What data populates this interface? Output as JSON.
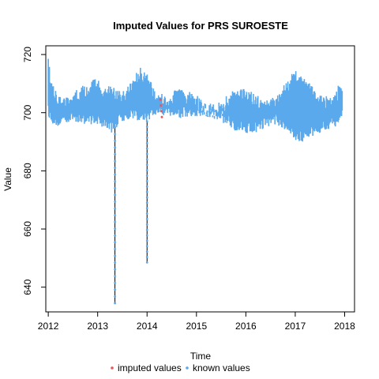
{
  "chart_data": {
    "type": "line",
    "title": "Imputed Values for  PRS SUROESTE",
    "xlabel": "Time",
    "ylabel": "Value",
    "xlim": [
      2011.95,
      2018.2
    ],
    "ylim": [
      631.5,
      723
    ],
    "x_ticks": [
      "2012",
      "2013",
      "2014",
      "2015",
      "2016",
      "2017",
      "2018"
    ],
    "y_ticks": [
      "640",
      "660",
      "680",
      "700",
      "720"
    ],
    "legend": {
      "placement": "bottom",
      "entries": [
        {
          "label": "imputed values",
          "color": "#e8575a"
        },
        {
          "label": "known values",
          "color": "#5aa9ec"
        }
      ]
    },
    "series": [
      {
        "name": "known values",
        "color": "#5aa9ec",
        "band": {
          "x": [
            2012.0,
            2012.05,
            2012.15,
            2012.3,
            2012.5,
            2012.75,
            2012.95,
            2013.1,
            2013.3,
            2013.5,
            2013.7,
            2013.85,
            2014.0,
            2014.2,
            2014.4,
            2014.6,
            2014.8,
            2015.0,
            2015.25,
            2015.5,
            2015.75,
            2016.0,
            2016.2,
            2016.4,
            2016.6,
            2016.8,
            2017.0,
            2017.2,
            2017.4,
            2017.6,
            2017.8,
            2017.95
          ],
          "upper": [
            719,
            712,
            709,
            705,
            707,
            710,
            712,
            710,
            709,
            707,
            711,
            716,
            714,
            706,
            707,
            708,
            708,
            706,
            703,
            704,
            708,
            709,
            706,
            705,
            706,
            710,
            715,
            712,
            708,
            706,
            708,
            711
          ],
          "lower": [
            699,
            697,
            695,
            696,
            697,
            696,
            696,
            695,
            693,
            697,
            698,
            697,
            697,
            699,
            699,
            698,
            698,
            698,
            698,
            697,
            694,
            693,
            693,
            695,
            696,
            694,
            690,
            690,
            692,
            694,
            695,
            697
          ]
        },
        "spikes": [
          {
            "x": 2013.35,
            "min": 634.5,
            "max": 695
          },
          {
            "x": 2014.0,
            "min": 648.5,
            "max": 697
          }
        ]
      },
      {
        "name": "imputed values",
        "color": "#e8575a",
        "points": [
          {
            "x": 2014.27,
            "y": 704.5
          },
          {
            "x": 2014.28,
            "y": 702.5
          },
          {
            "x": 2014.29,
            "y": 700.5
          },
          {
            "x": 2014.3,
            "y": 698.5
          }
        ]
      }
    ]
  }
}
